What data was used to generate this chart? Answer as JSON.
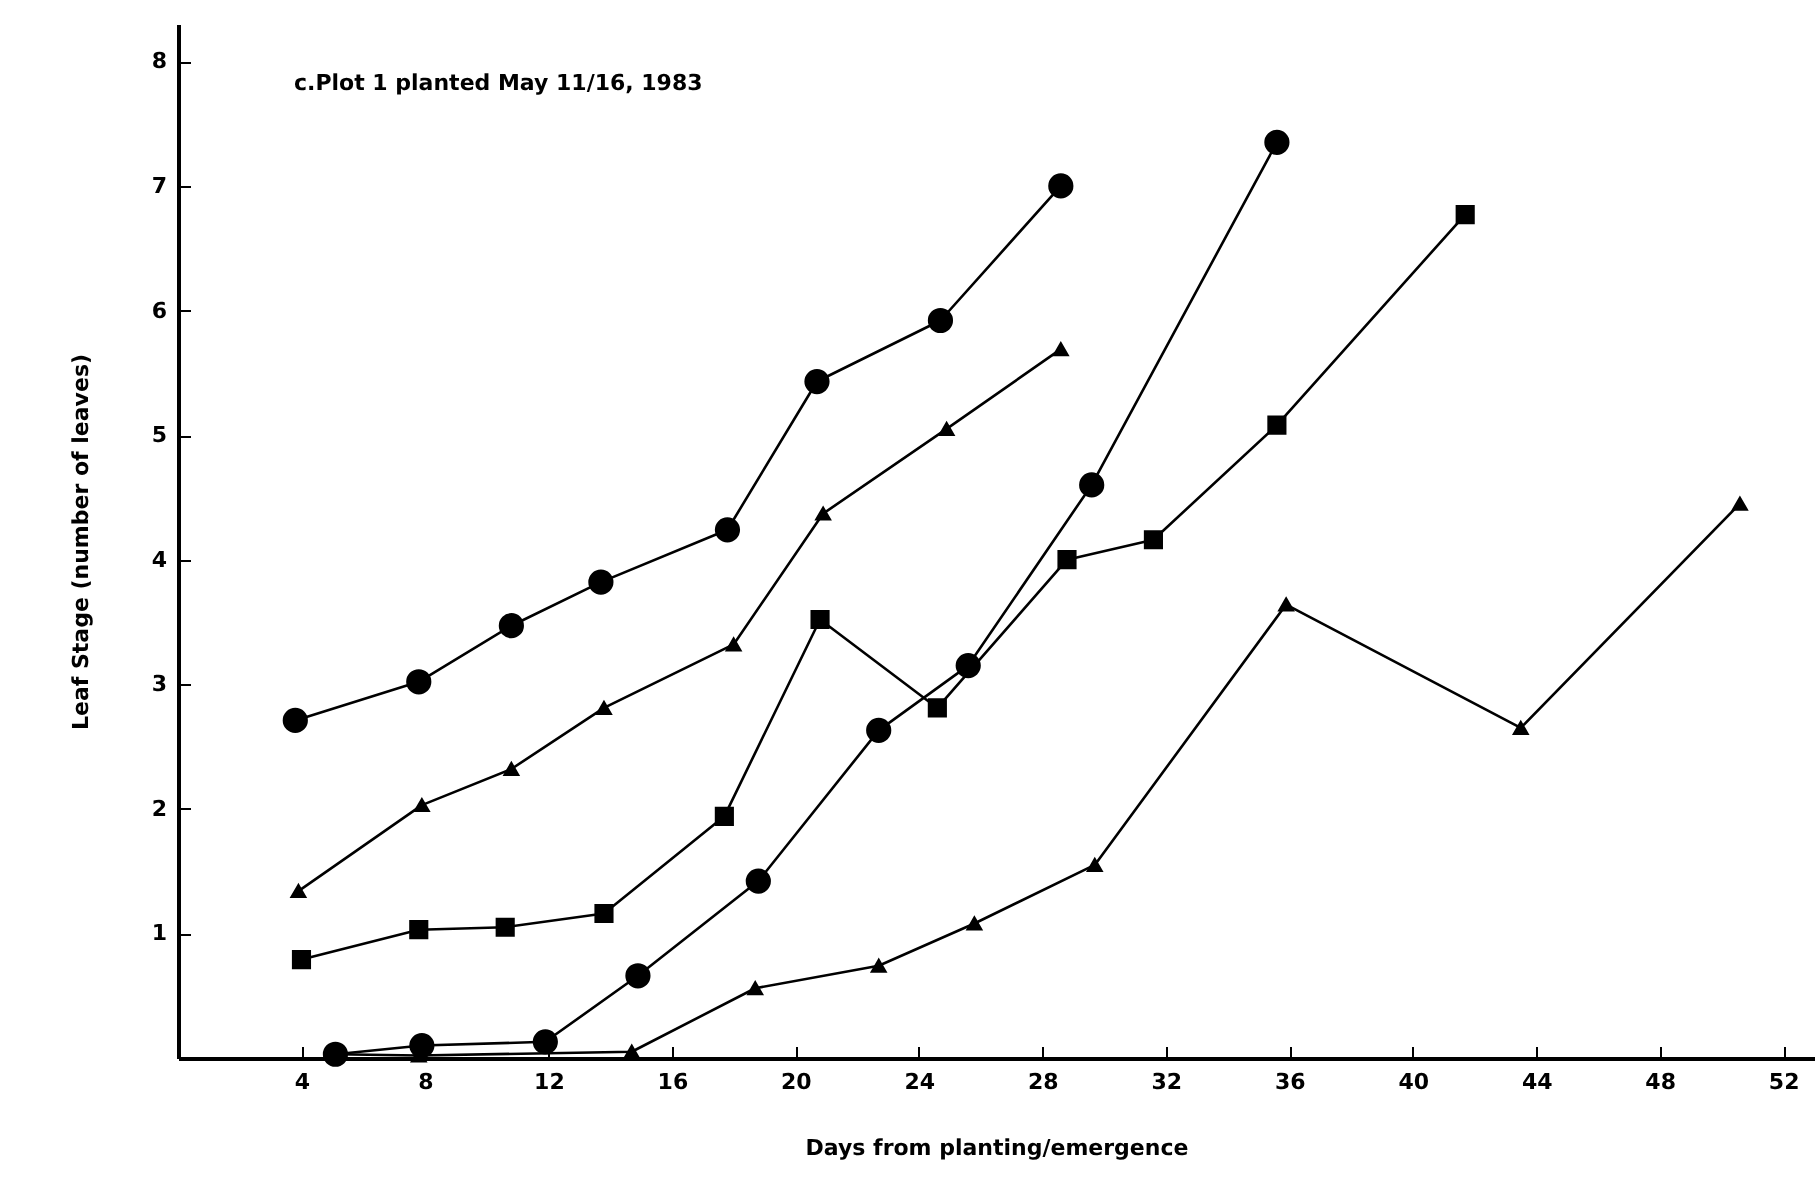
{
  "chart_data": {
    "type": "line",
    "xlabel": "Days from planting/emergence",
    "ylabel": "Leaf Stage  (number of leaves)",
    "annotations": [
      "c.Plot 1 planted May 11/16, 1983"
    ],
    "xlim": [
      0,
      53
    ],
    "xticks": [
      4,
      8,
      12,
      16,
      20,
      24,
      28,
      32,
      36,
      40,
      44,
      48,
      52
    ],
    "ylim": [
      0,
      8.3
    ],
    "yticks": [
      1,
      2,
      3,
      4,
      5,
      6,
      7,
      8
    ],
    "grid": false,
    "line_style": "solid",
    "series": [
      {
        "color": "#000000",
        "marker": "circle",
        "x": [
          3.8,
          7.8,
          10.8,
          13.7,
          17.8,
          20.7,
          24.7,
          28.6
        ],
        "values": [
          2.71,
          3.02,
          3.47,
          3.82,
          4.24,
          5.43,
          5.92,
          7.0
        ]
      },
      {
        "color": "#000000",
        "marker": "triangle",
        "x": [
          3.9,
          7.9,
          10.8,
          13.8,
          18.0,
          20.9,
          24.9,
          28.6
        ],
        "values": [
          1.34,
          2.03,
          2.32,
          2.81,
          3.32,
          4.37,
          5.05,
          5.69
        ]
      },
      {
        "color": "#000000",
        "marker": "square",
        "x": [
          4.0,
          7.8,
          10.6,
          13.8,
          17.7,
          20.8,
          24.6,
          28.8,
          31.6,
          35.6,
          41.7
        ],
        "values": [
          0.79,
          1.03,
          1.05,
          1.16,
          1.94,
          3.52,
          2.81,
          4.0,
          4.16,
          5.08,
          6.77
        ]
      },
      {
        "color": "#000000",
        "marker": "circle",
        "x": [
          5.1,
          7.9,
          11.9,
          14.9,
          18.8,
          22.7,
          25.6,
          29.6,
          35.6
        ],
        "values": [
          0.03,
          0.1,
          0.13,
          0.66,
          1.42,
          2.63,
          3.15,
          4.6,
          7.35
        ]
      },
      {
        "color": "#000000",
        "marker": "triangle",
        "x": [
          5.1,
          7.8,
          14.7,
          18.7,
          22.7,
          25.8,
          29.7,
          35.9,
          43.5,
          50.6
        ],
        "values": [
          0.03,
          0.02,
          0.05,
          0.56,
          0.74,
          1.08,
          1.55,
          3.64,
          2.65,
          4.45
        ]
      }
    ]
  }
}
